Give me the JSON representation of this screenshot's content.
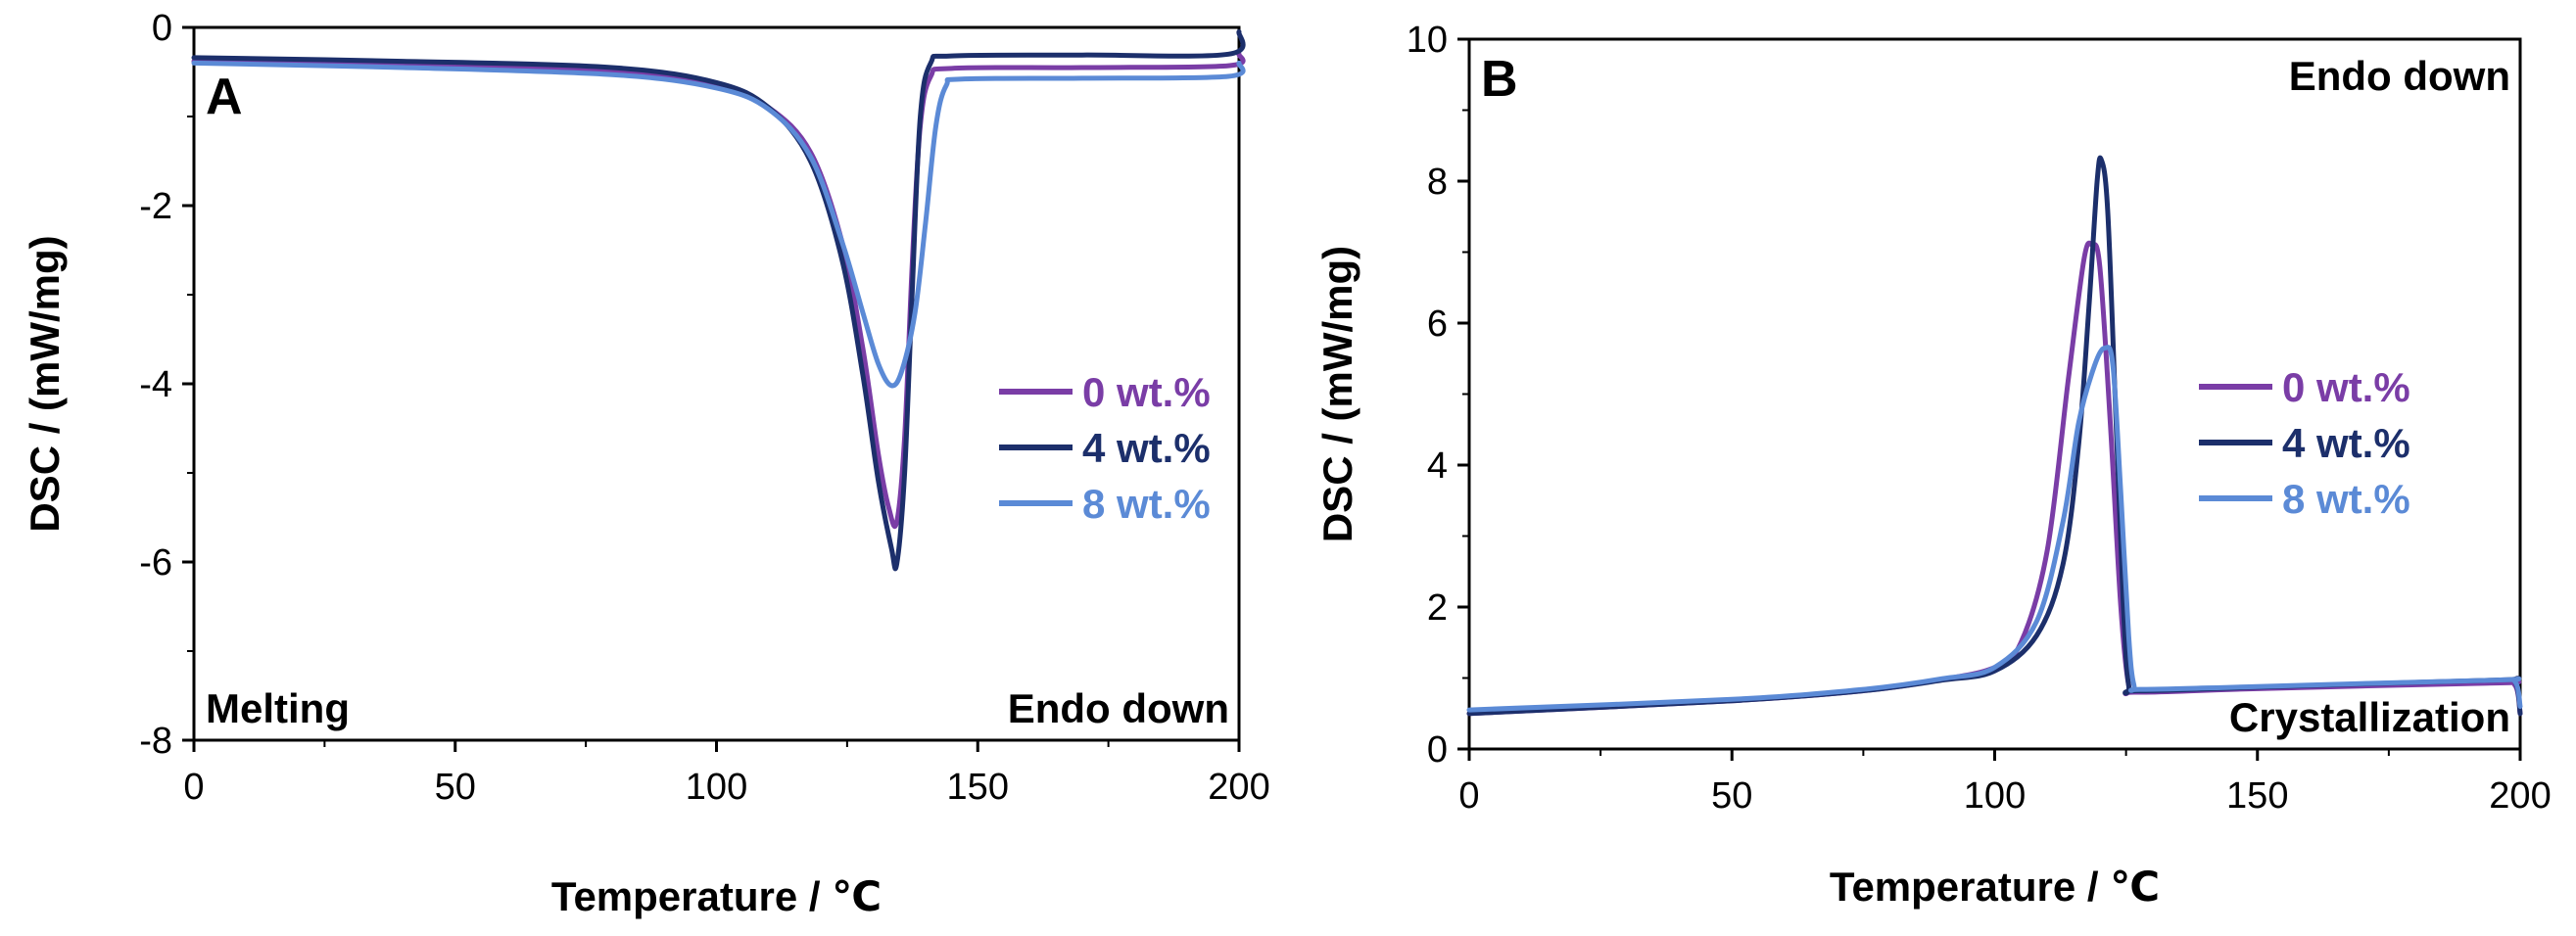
{
  "chart_data": [
    {
      "type": "line",
      "panel_label": "A",
      "xlabel": "Temperature / ℃",
      "ylabel": "DSC / (mW/mg)",
      "xlim": [
        0,
        200
      ],
      "ylim": [
        -8,
        0
      ],
      "x_ticks": [
        0,
        50,
        100,
        150,
        200
      ],
      "y_ticks": [
        -8,
        -6,
        -4,
        -2,
        0
      ],
      "annotations": {
        "bottom_left": "Melting",
        "bottom_right": "Endo down"
      },
      "series": [
        {
          "name": "0 wt.%",
          "color": "#7a3da6",
          "points": [
            [
              0,
              -0.38
            ],
            [
              40,
              -0.42
            ],
            [
              80,
              -0.5
            ],
            [
              100,
              -0.66
            ],
            [
              110,
              -0.9
            ],
            [
              118,
              -1.4
            ],
            [
              124,
              -2.4
            ],
            [
              128,
              -3.6
            ],
            [
              131,
              -4.8
            ],
            [
              133,
              -5.4
            ],
            [
              134.5,
              -5.55
            ],
            [
              136,
              -4.6
            ],
            [
              137.5,
              -2.6
            ],
            [
              139,
              -1.1
            ],
            [
              141,
              -0.55
            ],
            [
              145,
              -0.46
            ],
            [
              170,
              -0.45
            ],
            [
              198,
              -0.43
            ],
            [
              200,
              -0.3
            ]
          ]
        },
        {
          "name": "4 wt.%",
          "color": "#1c2f6b",
          "points": [
            [
              0,
              -0.34
            ],
            [
              40,
              -0.38
            ],
            [
              80,
              -0.45
            ],
            [
              100,
              -0.62
            ],
            [
              110,
              -0.9
            ],
            [
              118,
              -1.5
            ],
            [
              124,
              -2.6
            ],
            [
              128,
              -3.9
            ],
            [
              131,
              -5.1
            ],
            [
              133.5,
              -5.85
            ],
            [
              134.5,
              -6.02
            ],
            [
              136,
              -5.0
            ],
            [
              137.5,
              -2.9
            ],
            [
              139,
              -1.0
            ],
            [
              141,
              -0.4
            ],
            [
              145,
              -0.32
            ],
            [
              170,
              -0.31
            ],
            [
              198,
              -0.3
            ],
            [
              200,
              -0.05
            ]
          ]
        },
        {
          "name": "8 wt.%",
          "color": "#5b8ad6",
          "points": [
            [
              0,
              -0.4
            ],
            [
              40,
              -0.45
            ],
            [
              80,
              -0.53
            ],
            [
              100,
              -0.68
            ],
            [
              110,
              -0.92
            ],
            [
              118,
              -1.45
            ],
            [
              124,
              -2.4
            ],
            [
              128,
              -3.2
            ],
            [
              131,
              -3.78
            ],
            [
              133.5,
              -4.02
            ],
            [
              135.5,
              -3.85
            ],
            [
              138,
              -3.2
            ],
            [
              140,
              -2.2
            ],
            [
              142,
              -1.1
            ],
            [
              144,
              -0.65
            ],
            [
              147,
              -0.58
            ],
            [
              170,
              -0.57
            ],
            [
              198,
              -0.55
            ],
            [
              200,
              -0.4
            ]
          ]
        }
      ],
      "legend": {
        "placement": "right-middle"
      }
    },
    {
      "type": "line",
      "panel_label": "B",
      "xlabel": "Temperature / ℃",
      "ylabel": "DSC / (mW/mg)",
      "xlim": [
        0,
        200
      ],
      "ylim": [
        0,
        10
      ],
      "x_ticks": [
        0,
        50,
        100,
        150,
        200
      ],
      "y_ticks": [
        0,
        2,
        4,
        6,
        8,
        10
      ],
      "annotations": {
        "top_right": "Endo down",
        "bottom_right": "Crystallization"
      },
      "series": [
        {
          "name": "0 wt.%",
          "color": "#7a3da6",
          "points": [
            [
              0,
              0.5
            ],
            [
              50,
              0.68
            ],
            [
              75,
              0.82
            ],
            [
              90,
              0.98
            ],
            [
              100,
              1.15
            ],
            [
              105,
              1.5
            ],
            [
              110,
              2.8
            ],
            [
              114,
              5.2
            ],
            [
              117,
              6.9
            ],
            [
              118.5,
              7.1
            ],
            [
              120,
              6.8
            ],
            [
              122,
              4.6
            ],
            [
              124,
              2.0
            ],
            [
              125.5,
              0.9
            ],
            [
              127,
              0.8
            ],
            [
              150,
              0.85
            ],
            [
              195,
              0.93
            ],
            [
              199,
              0.9
            ],
            [
              200,
              0.5
            ]
          ]
        },
        {
          "name": "4 wt.%",
          "color": "#1c2f6b",
          "points": [
            [
              0,
              0.5
            ],
            [
              50,
              0.68
            ],
            [
              75,
              0.82
            ],
            [
              90,
              0.97
            ],
            [
              100,
              1.1
            ],
            [
              108,
              1.6
            ],
            [
              113,
              2.6
            ],
            [
              116,
              4.3
            ],
            [
              118,
              6.3
            ],
            [
              119.5,
              8.0
            ],
            [
              120.3,
              8.3
            ],
            [
              121.5,
              7.6
            ],
            [
              123,
              4.8
            ],
            [
              124.5,
              2.0
            ],
            [
              125.5,
              0.9
            ],
            [
              127,
              0.82
            ],
            [
              150,
              0.87
            ],
            [
              195,
              0.97
            ],
            [
              199,
              0.95
            ],
            [
              200,
              0.5
            ]
          ]
        },
        {
          "name": "8 wt.%",
          "color": "#5b8ad6",
          "points": [
            [
              0,
              0.55
            ],
            [
              50,
              0.7
            ],
            [
              75,
              0.84
            ],
            [
              90,
              0.99
            ],
            [
              100,
              1.15
            ],
            [
              108,
              1.8
            ],
            [
              113,
              3.2
            ],
            [
              116,
              4.6
            ],
            [
              119,
              5.4
            ],
            [
              121,
              5.65
            ],
            [
              122.5,
              5.4
            ],
            [
              124,
              3.6
            ],
            [
              125.5,
              1.6
            ],
            [
              126.5,
              0.9
            ],
            [
              128,
              0.84
            ],
            [
              150,
              0.88
            ],
            [
              195,
              0.97
            ],
            [
              199,
              0.95
            ],
            [
              200,
              0.6
            ]
          ]
        }
      ],
      "legend": {
        "placement": "right-middle"
      }
    }
  ]
}
